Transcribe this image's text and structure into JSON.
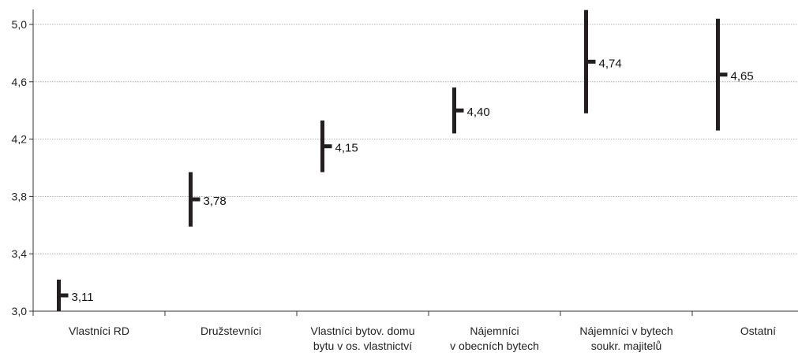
{
  "chart_data": {
    "type": "errorbar",
    "title": "",
    "xlabel": "",
    "ylabel": "",
    "ylim": [
      3.0,
      5.0
    ],
    "yticks": [
      "3,0",
      "3,4",
      "3,8",
      "4,2",
      "4,6",
      "5,0"
    ],
    "ytick_values": [
      3.0,
      3.4,
      3.8,
      4.2,
      4.6,
      5.0
    ],
    "grid": true,
    "legend": "none",
    "colors": {
      "mark": "#231f20",
      "grid": "#9a9a9a",
      "axis": "#333333"
    },
    "categories": [
      {
        "label_lines": [
          "Vlastníci RD"
        ],
        "value": 3.11,
        "value_label": "3,11",
        "low": 3.0,
        "high": 3.22
      },
      {
        "label_lines": [
          "Družstevníci"
        ],
        "value": 3.78,
        "value_label": "3,78",
        "low": 3.59,
        "high": 3.97
      },
      {
        "label_lines": [
          "Vlastníci bytov. domu",
          "bytu v os. vlastnictví"
        ],
        "value": 4.15,
        "value_label": "4,15",
        "low": 3.97,
        "high": 4.33
      },
      {
        "label_lines": [
          "Nájemníci",
          "v obecních bytech"
        ],
        "value": 4.4,
        "value_label": "4,40",
        "low": 4.24,
        "high": 4.56
      },
      {
        "label_lines": [
          "Nájemníci v bytech",
          "soukr. majitelů"
        ],
        "value": 4.74,
        "value_label": "4,74",
        "low": 4.38,
        "high": 5.1
      },
      {
        "label_lines": [
          "Ostatní"
        ],
        "value": 4.65,
        "value_label": "4,65",
        "low": 4.26,
        "high": 5.04
      }
    ]
  }
}
